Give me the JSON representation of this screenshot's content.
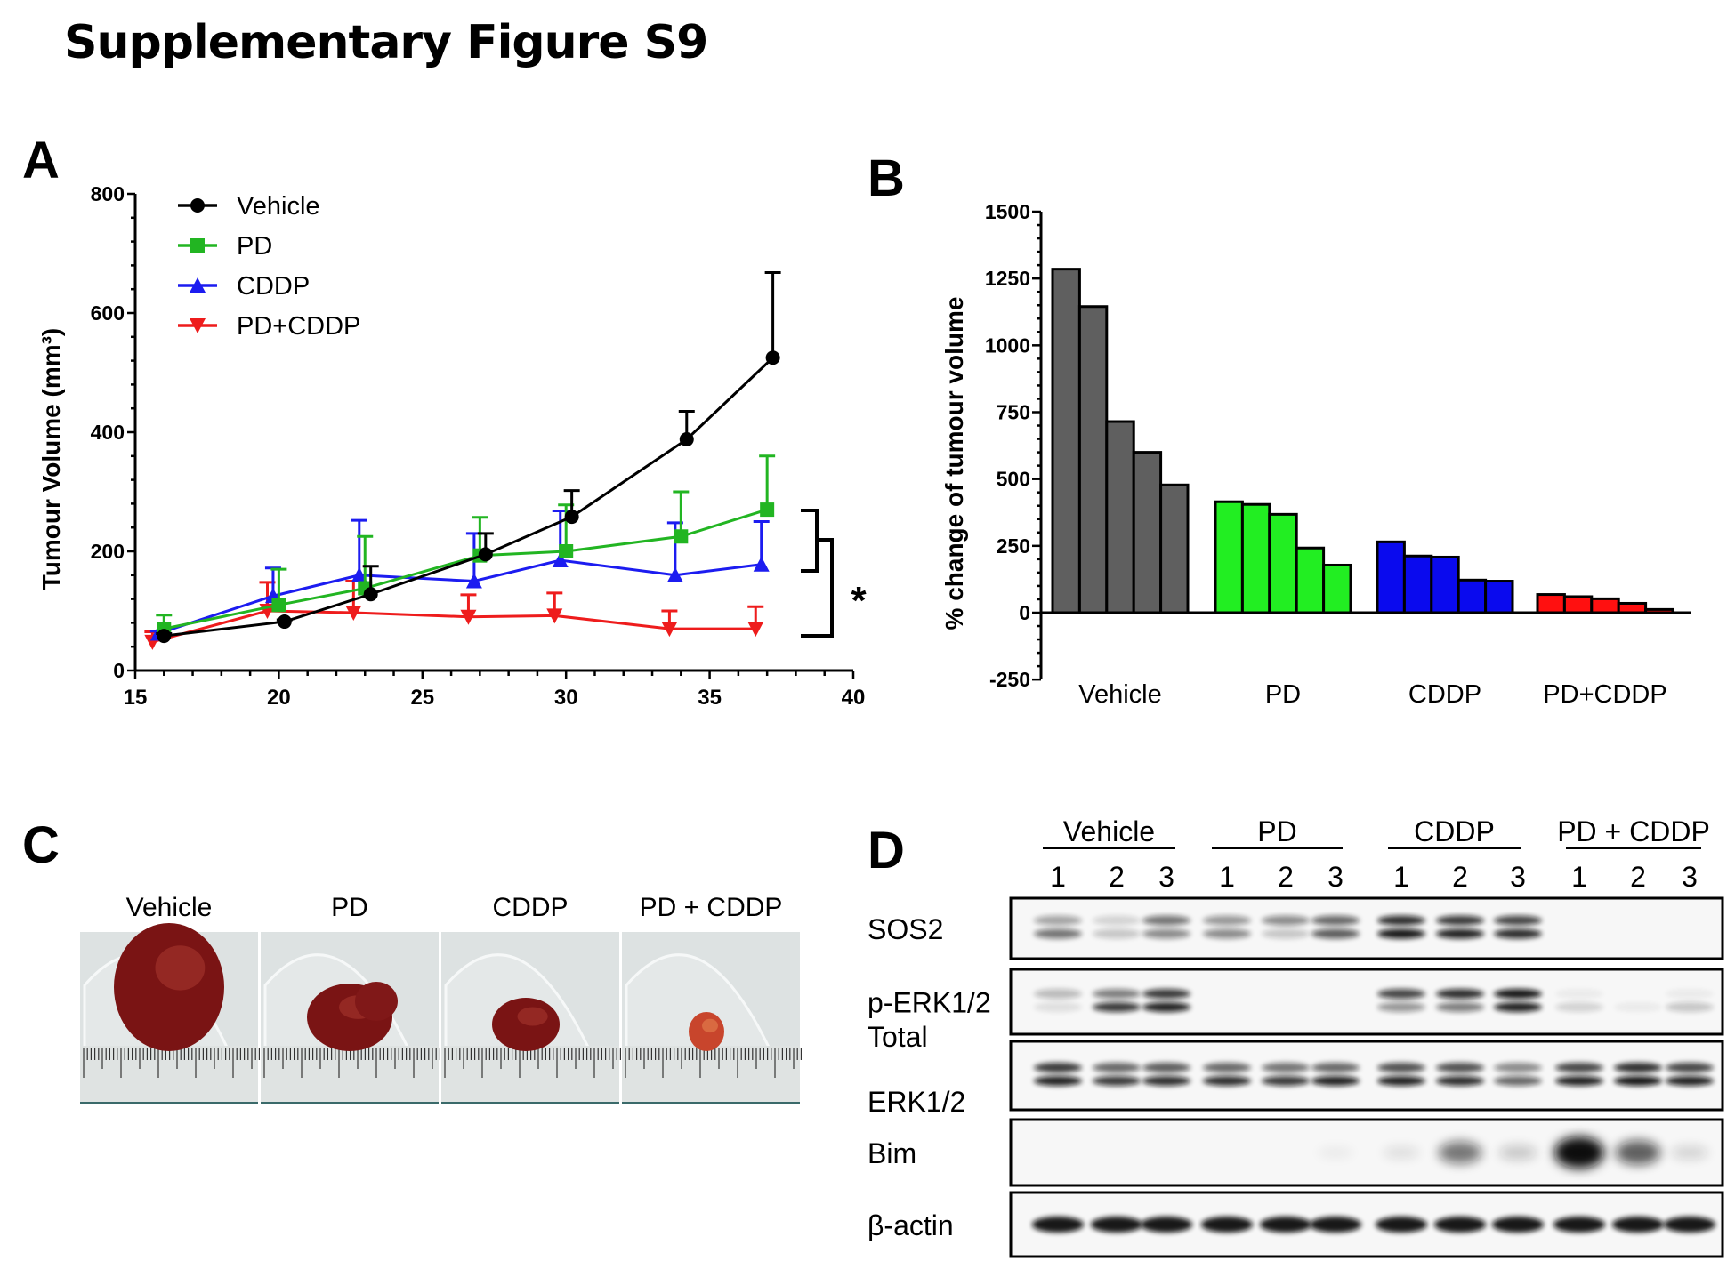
{
  "figure": {
    "title": "Supplementary Figure S9",
    "panel_labels": [
      "A",
      "B",
      "C",
      "D"
    ]
  },
  "chart_data": [
    {
      "panel": "A",
      "type": "line",
      "xlabel": "",
      "ylabel": "Tumour Volume (mm³)",
      "xlim": [
        15,
        40
      ],
      "ylim": [
        0,
        800
      ],
      "xticks": [
        15,
        20,
        25,
        30,
        35,
        40
      ],
      "yticks": [
        0,
        200,
        400,
        600,
        800
      ],
      "legend_placement": "top-left",
      "error_bars": "upper SEM",
      "significance": "*",
      "series": [
        {
          "name": "Vehicle",
          "color": "#000000",
          "marker": "circle",
          "x": [
            16,
            20.2,
            23.2,
            27.2,
            30.2,
            34.2,
            37.2
          ],
          "y": [
            58,
            82,
            128,
            195,
            258,
            388,
            525
          ],
          "err": [
            62,
            85,
            175,
            230,
            302,
            435,
            668
          ]
        },
        {
          "name": "PD",
          "color": "#22b522",
          "marker": "square",
          "x": [
            16,
            20,
            23,
            27,
            30,
            34,
            37
          ],
          "y": [
            70,
            110,
            138,
            193,
            200,
            225,
            270
          ],
          "err": [
            93,
            170,
            225,
            257,
            278,
            300,
            360
          ]
        },
        {
          "name": "CDDP",
          "color": "#1c1cf0",
          "marker": "triangle-up",
          "x": [
            15.8,
            19.8,
            22.8,
            26.8,
            29.8,
            33.8,
            36.8
          ],
          "y": [
            62,
            125,
            160,
            150,
            185,
            160,
            178
          ],
          "err": [
            66,
            172,
            252,
            230,
            268,
            248,
            250
          ]
        },
        {
          "name": "PD+CDDP",
          "color": "#ee1c1c",
          "marker": "triangle-down",
          "x": [
            15.6,
            19.6,
            22.6,
            26.6,
            29.6,
            33.6,
            36.6
          ],
          "y": [
            48,
            100,
            97,
            90,
            92,
            70,
            70
          ],
          "err": [
            65,
            148,
            150,
            127,
            130,
            100,
            107
          ]
        }
      ]
    },
    {
      "panel": "B",
      "type": "bar",
      "ylabel": "% change of tumour volume",
      "ylim": [
        -250,
        1500
      ],
      "yticks": [
        -250,
        0,
        250,
        500,
        750,
        1000,
        1250,
        1500
      ],
      "categories": [
        "Vehicle",
        "PD",
        "CDDP",
        "PD+CDDP"
      ],
      "colors": [
        "#5f5f5f",
        "#22ee22",
        "#0a0aee",
        "#ff1010"
      ],
      "values": [
        [
          1285,
          1145,
          715,
          600,
          478
        ],
        [
          415,
          405,
          368,
          242,
          178
        ],
        [
          265,
          212,
          208,
          122,
          118
        ],
        [
          68,
          60,
          52,
          35,
          12
        ]
      ]
    }
  ],
  "panel_c": {
    "captions": [
      "Vehicle",
      "PD",
      "CDDP",
      "PD + CDDP"
    ]
  },
  "panel_d": {
    "groups": [
      "Vehicle",
      "PD",
      "CDDP",
      "PD + CDDP"
    ],
    "lanes": [
      "1",
      "2",
      "3",
      "1",
      "2",
      "3",
      "1",
      "2",
      "3",
      "1",
      "2",
      "3"
    ],
    "rows": [
      {
        "label": [
          "SOS2"
        ],
        "doublet": true,
        "intensity": [
          [
            0.35,
            0.55
          ],
          [
            0.15,
            0.2
          ],
          [
            0.55,
            0.45
          ],
          [
            0.4,
            0.45
          ],
          [
            0.45,
            0.2
          ],
          [
            0.6,
            0.65
          ],
          [
            0.85,
            0.95
          ],
          [
            0.8,
            0.9
          ],
          [
            0.75,
            0.85
          ],
          [
            0,
            0
          ],
          [
            0,
            0
          ],
          [
            0,
            0
          ]
        ]
      },
      {
        "label": [
          "p-ERK1/2"
        ],
        "doublet": true,
        "intensity": [
          [
            0.25,
            0.1
          ],
          [
            0.5,
            0.8
          ],
          [
            0.8,
            0.9
          ],
          [
            0,
            0
          ],
          [
            0,
            0
          ],
          [
            0,
            0
          ],
          [
            0.75,
            0.4
          ],
          [
            0.85,
            0.5
          ],
          [
            0.95,
            0.9
          ],
          [
            0.05,
            0.15
          ],
          [
            0,
            0.05
          ],
          [
            0.05,
            0.2
          ]
        ]
      },
      {
        "label": [
          "Total",
          "ERK1/2"
        ],
        "doublet": true,
        "intensity": [
          [
            0.8,
            0.9
          ],
          [
            0.6,
            0.8
          ],
          [
            0.65,
            0.85
          ],
          [
            0.6,
            0.85
          ],
          [
            0.55,
            0.8
          ],
          [
            0.6,
            0.9
          ],
          [
            0.7,
            0.9
          ],
          [
            0.7,
            0.85
          ],
          [
            0.45,
            0.6
          ],
          [
            0.75,
            0.9
          ],
          [
            0.85,
            0.95
          ],
          [
            0.75,
            0.9
          ]
        ]
      },
      {
        "label": [
          "Bim"
        ],
        "doublet": false,
        "intensity": [
          0,
          0,
          0,
          0,
          0,
          0.05,
          0.1,
          0.55,
          0.2,
          1,
          0.65,
          0.15
        ]
      },
      {
        "label": [
          "β-actin"
        ],
        "doublet": false,
        "intensity": [
          0.95,
          0.95,
          0.95,
          0.95,
          0.95,
          0.95,
          0.95,
          0.95,
          0.95,
          0.95,
          0.95,
          0.95
        ]
      }
    ]
  }
}
